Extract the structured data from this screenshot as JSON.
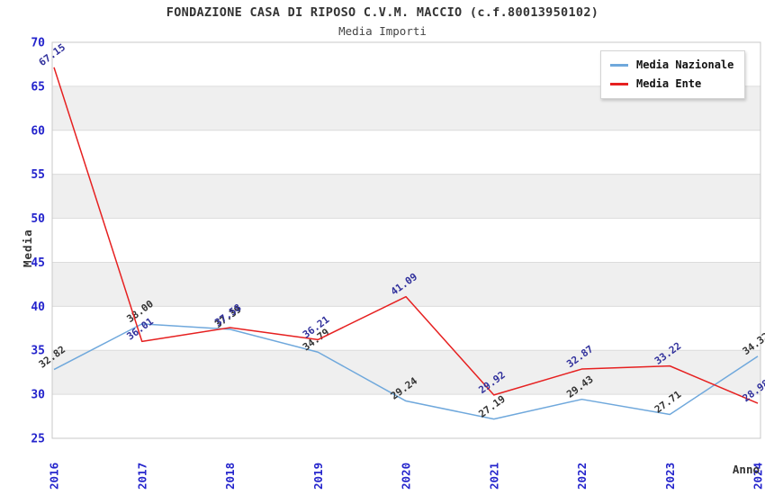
{
  "header": {
    "title": "FONDAZIONE CASA DI RIPOSO C.V.M. MACCIO (c.f.80013950102)",
    "subtitle": "Media Importi"
  },
  "chart_data": {
    "type": "line",
    "x": [
      "2016",
      "2017",
      "2018",
      "2019",
      "2020",
      "2021",
      "2022",
      "2023",
      "2024"
    ],
    "xlabel": "Anno",
    "ylabel": "Media",
    "ylim": [
      25,
      70
    ],
    "ytick_step": 5,
    "grid": true,
    "alternating_bands": true,
    "legend_position": "top-right",
    "series": [
      {
        "name": "Media Nazionale",
        "color": "#6fa8dc",
        "label_color": "#333333",
        "values": [
          32.82,
          38.0,
          37.39,
          34.79,
          29.24,
          27.19,
          29.43,
          27.71,
          34.32
        ]
      },
      {
        "name": "Media Ente",
        "color": "#e62020",
        "label_color": "#30309c",
        "values": [
          67.15,
          36.01,
          37.58,
          36.21,
          41.09,
          29.92,
          32.87,
          33.22,
          28.98
        ]
      }
    ],
    "colors": {
      "band": "#efefef",
      "grid": "#dcdcdc",
      "frame": "#c8c8c8",
      "tick_label": "#2424cc",
      "axis_label": "#333333"
    }
  }
}
